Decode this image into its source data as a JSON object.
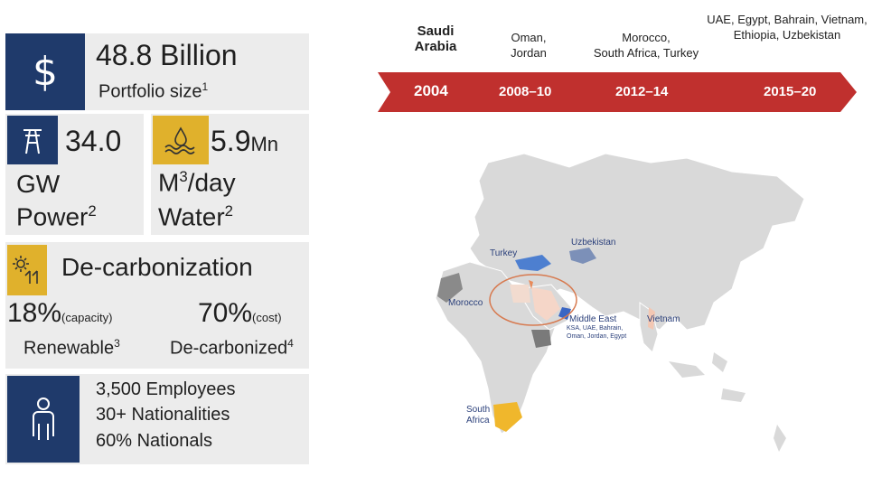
{
  "portfolio": {
    "icon": "dollar-icon",
    "symbol": "$",
    "value": "48.8 Billion",
    "label": "Portfolio size",
    "note": "1"
  },
  "power": {
    "icon": "power-pylon-icon",
    "value": "34.0",
    "unit_line": "GW",
    "label": "Power",
    "note": "2"
  },
  "water": {
    "icon": "water-drop-icon",
    "value": "5.9",
    "value_unit": "Mn",
    "unit_prefix": "M",
    "unit_exp": "3",
    "unit_suffix": "/day",
    "label": "Water",
    "note": "2"
  },
  "decarbonization": {
    "icon": "solar-wind-icon",
    "title": "De-carbonization",
    "renewable_value": "18%",
    "renewable_qualifier": "(capacity)",
    "renewable_label": "Renewable",
    "renewable_note": "3",
    "decarb_value": "70%",
    "decarb_qualifier": "(cost)",
    "decarb_label": "De-carbonized",
    "decarb_note": "4"
  },
  "people": {
    "icon": "person-icon",
    "employees": "3,500 Employees",
    "nationalities": "30+ Nationalities",
    "nationals": "60% Nationals"
  },
  "timeline": {
    "colors": {
      "arrow": "#c0302e"
    },
    "stages": [
      {
        "year": "2004",
        "countries_line1": "Saudi",
        "countries_line2": "Arabia"
      },
      {
        "year": "2008–10",
        "countries_line1": "Oman,",
        "countries_line2": "Jordan"
      },
      {
        "year": "2012–14",
        "countries_line1": "Morocco,",
        "countries_line2": "South Africa, Turkey"
      },
      {
        "year": "2015–20",
        "countries_line1": "UAE, Egypt, Bahrain, Vietnam,",
        "countries_line2": "Ethiopia, Uzbekistan"
      }
    ]
  },
  "map": {
    "labels": {
      "turkey": "Turkey",
      "uzbekistan": "Uzbekistan",
      "morocco": "Morocco",
      "middle_east": "Middle East",
      "middle_east_sub1": "KSA, UAE, Bahrain,",
      "middle_east_sub2": "Oman, Jordan, Egypt",
      "vietnam": "Vietnam",
      "south_africa_1": "South",
      "south_africa_2": "Africa"
    }
  }
}
